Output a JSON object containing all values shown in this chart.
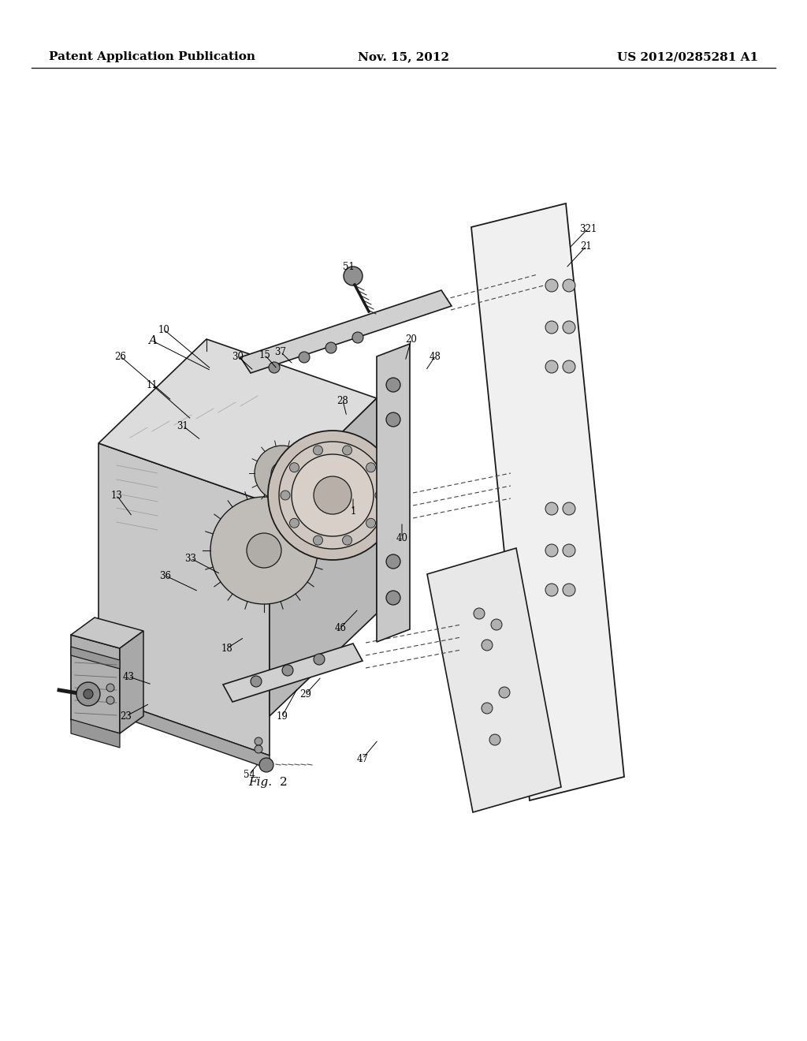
{
  "header_left": "Patent Application Publication",
  "header_center": "Nov. 15, 2012",
  "header_right": "US 2012/0285281 A1",
  "background_color": "#ffffff",
  "text_color": "#000000",
  "line_color": "#1a1a1a",
  "header_fontsize": 11,
  "body_fontsize": 9,
  "fig_label": "Fig.",
  "fig_number": "2",
  "label_data": [
    [
      "10",
      208,
      418,
      268,
      468
    ],
    [
      "26",
      153,
      452,
      218,
      508
    ],
    [
      "11",
      193,
      488,
      243,
      532
    ],
    [
      "13",
      148,
      628,
      168,
      655
    ],
    [
      "36",
      210,
      730,
      252,
      750
    ],
    [
      "33",
      242,
      708,
      280,
      728
    ],
    [
      "43",
      163,
      858,
      193,
      868
    ],
    [
      "23",
      160,
      908,
      190,
      892
    ],
    [
      "18",
      288,
      822,
      310,
      808
    ],
    [
      "29",
      388,
      880,
      408,
      858
    ],
    [
      "19",
      358,
      908,
      378,
      872
    ],
    [
      "47",
      460,
      962,
      480,
      938
    ],
    [
      "46",
      432,
      796,
      455,
      772
    ],
    [
      "40",
      510,
      682,
      510,
      662
    ],
    [
      "20",
      522,
      430,
      514,
      458
    ],
    [
      "48",
      552,
      452,
      540,
      470
    ],
    [
      "51",
      442,
      338,
      450,
      362
    ],
    [
      "31",
      232,
      540,
      255,
      558
    ],
    [
      "30",
      302,
      452,
      322,
      470
    ],
    [
      "15",
      336,
      450,
      352,
      468
    ],
    [
      "37",
      356,
      446,
      372,
      462
    ],
    [
      "28",
      435,
      508,
      440,
      528
    ],
    [
      "1",
      448,
      648,
      448,
      630
    ],
    [
      "321",
      746,
      290,
      722,
      315
    ],
    [
      "21",
      744,
      312,
      718,
      340
    ],
    [
      "54",
      316,
      982,
      328,
      968
    ],
    [
      "A",
      193,
      432,
      268,
      470
    ]
  ]
}
